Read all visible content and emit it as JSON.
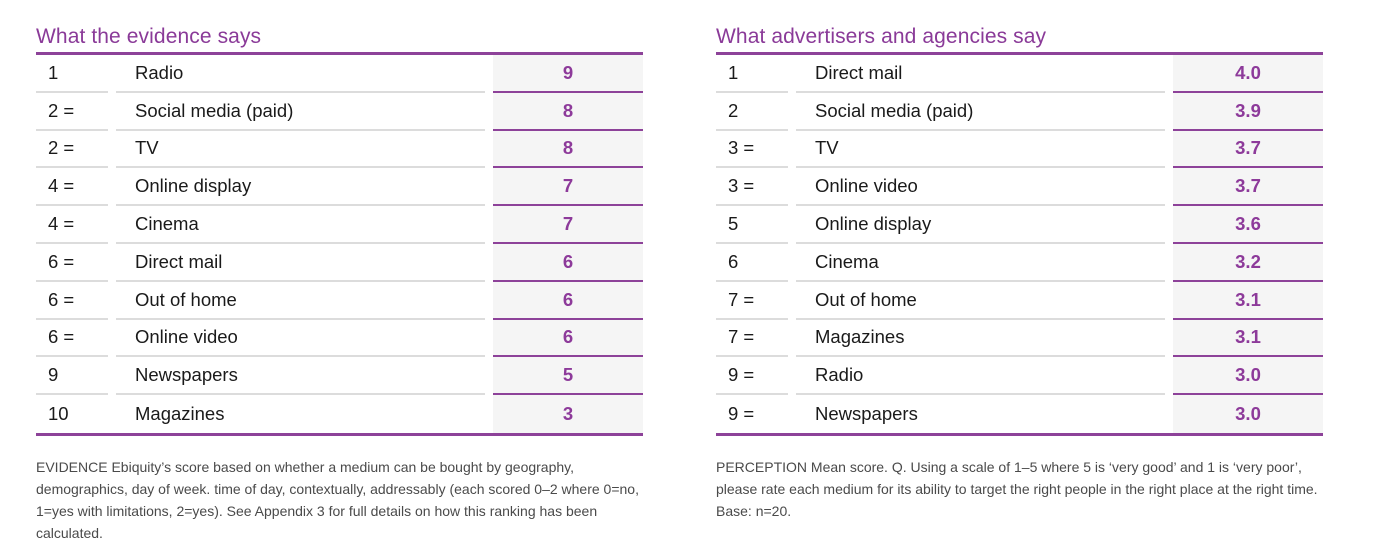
{
  "left": {
    "title": "What the evidence says",
    "rows": [
      {
        "rank": "1",
        "medium": "Radio",
        "score": "9"
      },
      {
        "rank": "2 =",
        "medium": "Social media (paid)",
        "score": "8"
      },
      {
        "rank": "2 =",
        "medium": "TV",
        "score": "8"
      },
      {
        "rank": "4 =",
        "medium": "Online display",
        "score": "7"
      },
      {
        "rank": "4 =",
        "medium": "Cinema",
        "score": "7"
      },
      {
        "rank": "6 =",
        "medium": "Direct mail",
        "score": "6"
      },
      {
        "rank": "6 =",
        "medium": "Out of home",
        "score": "6"
      },
      {
        "rank": "6 =",
        "medium": "Online video",
        "score": "6"
      },
      {
        "rank": "9",
        "medium": "Newspapers",
        "score": "5"
      },
      {
        "rank": "10",
        "medium": "Magazines",
        "score": "3"
      }
    ],
    "note": "EVIDENCE Ebiquity’s score based on whether a medium can be bought by geography, demographics, day of week. time of day, contextually, addressably (each scored 0–2 where 0=no, 1=yes with limitations, 2=yes).  See Appendix 3 for full details on how this ranking has been calculated."
  },
  "right": {
    "title": "What advertisers and agencies say",
    "rows": [
      {
        "rank": "1",
        "medium": "Direct mail",
        "score": "4.0"
      },
      {
        "rank": "2",
        "medium": "Social media (paid)",
        "score": "3.9"
      },
      {
        "rank": "3 =",
        "medium": "TV",
        "score": "3.7"
      },
      {
        "rank": "3 =",
        "medium": "Online video",
        "score": "3.7"
      },
      {
        "rank": "5",
        "medium": "Online display",
        "score": "3.6"
      },
      {
        "rank": "6",
        "medium": "Cinema",
        "score": "3.2"
      },
      {
        "rank": "7 =",
        "medium": "Out of home",
        "score": "3.1"
      },
      {
        "rank": "7 =",
        "medium": "Magazines",
        "score": "3.1"
      },
      {
        "rank": "9 =",
        "medium": "Radio",
        "score": "3.0"
      },
      {
        "rank": "9 =",
        "medium": "Newspapers",
        "score": "3.0"
      }
    ],
    "note": "PERCEPTION Mean score. Q. Using a scale of 1–5 where 5 is ‘very good’ and 1 is ‘very poor’, please rate each medium for its ability to target the right people in the right place at the right time. Base: n=20."
  },
  "colors": {
    "accent": "#8d4299",
    "title": "#8a3a98",
    "score_bg": "#f5f5f5",
    "row_rule": "#dcdcdc"
  }
}
